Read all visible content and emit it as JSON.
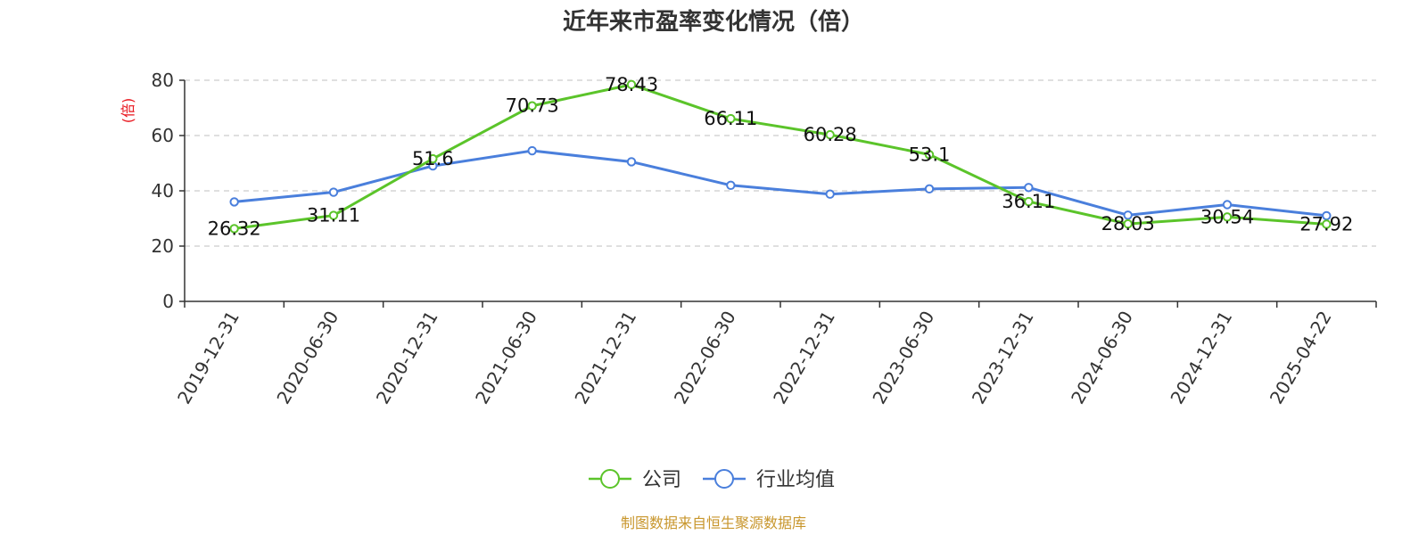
{
  "chart_data": {
    "type": "line",
    "title": "近年来市盈率变化情况（倍）",
    "ylabel": "(倍)",
    "xlabel": "",
    "ylim": [
      0,
      80
    ],
    "yticks": [
      "0",
      "20",
      "40",
      "60",
      "80"
    ],
    "grid": true,
    "legend_position": "bottom",
    "categories": [
      "2019-12-31",
      "2020-06-30",
      "2020-12-31",
      "2021-06-30",
      "2021-12-31",
      "2022-06-30",
      "2022-12-31",
      "2023-06-30",
      "2023-12-31",
      "2024-06-30",
      "2024-12-31",
      "2025-04-22"
    ],
    "series": [
      {
        "name": "公司",
        "color": "#5bc42a",
        "values": [
          26.32,
          31.11,
          51.6,
          70.73,
          78.43,
          66.11,
          60.28,
          53.1,
          36.11,
          28.03,
          30.54,
          27.92
        ],
        "labels": [
          "26.32",
          "31.11",
          "51.6",
          "70.73",
          "78.43",
          "66.11",
          "60.28",
          "53.1",
          "36.11",
          "28.03",
          "30.54",
          "27.92"
        ]
      },
      {
        "name": "行业均值",
        "color": "#4a7fdc",
        "values": [
          36,
          39.5,
          49,
          54.5,
          50.5,
          42,
          38.8,
          40.7,
          41.2,
          31.2,
          35,
          31
        ]
      }
    ],
    "source": "制图数据来自恒生聚源数据库"
  }
}
